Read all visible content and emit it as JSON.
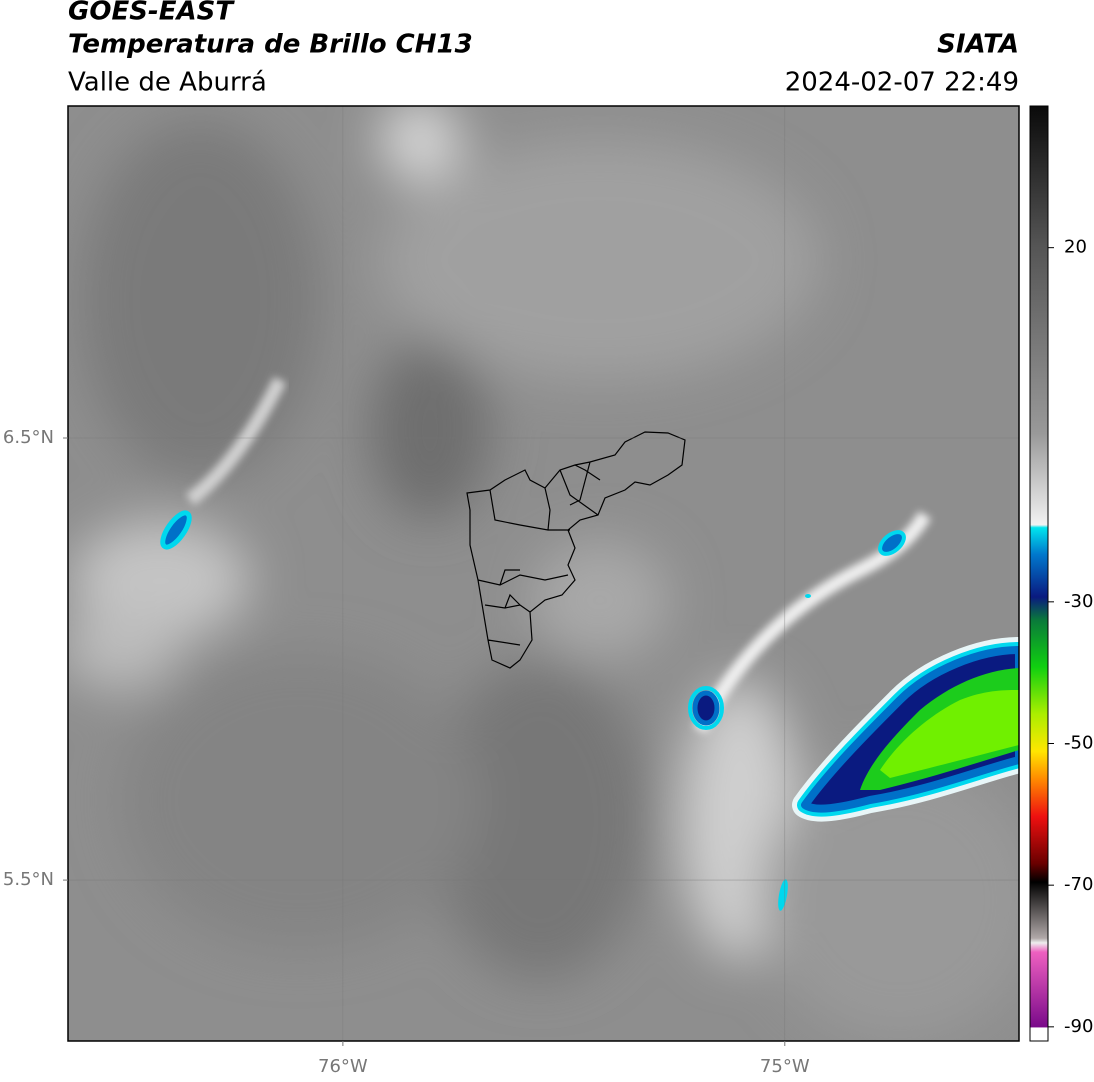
{
  "header": {
    "title": "GOES-EAST",
    "subtitle": "Temperatura de Brillo CH13",
    "region": "Valle de Aburrá",
    "source": "SIATA",
    "datetime": "2024-02-07 22:49"
  },
  "map": {
    "lonlim": [
      -76.622,
      -74.47
    ],
    "latlim": [
      5.136,
      7.251
    ],
    "lonticks": [
      {
        "value": -76,
        "label": "76°W"
      },
      {
        "value": -75,
        "label": "75°W"
      }
    ],
    "latticks": [
      {
        "value": 6.5,
        "label": "6.5°N"
      },
      {
        "value": 5.5,
        "label": "5.5°N"
      }
    ],
    "grid": true
  },
  "colorbar": {
    "lim": [
      -92,
      40
    ],
    "ticks": [
      20,
      -30,
      -50,
      -70,
      -90
    ]
  }
}
